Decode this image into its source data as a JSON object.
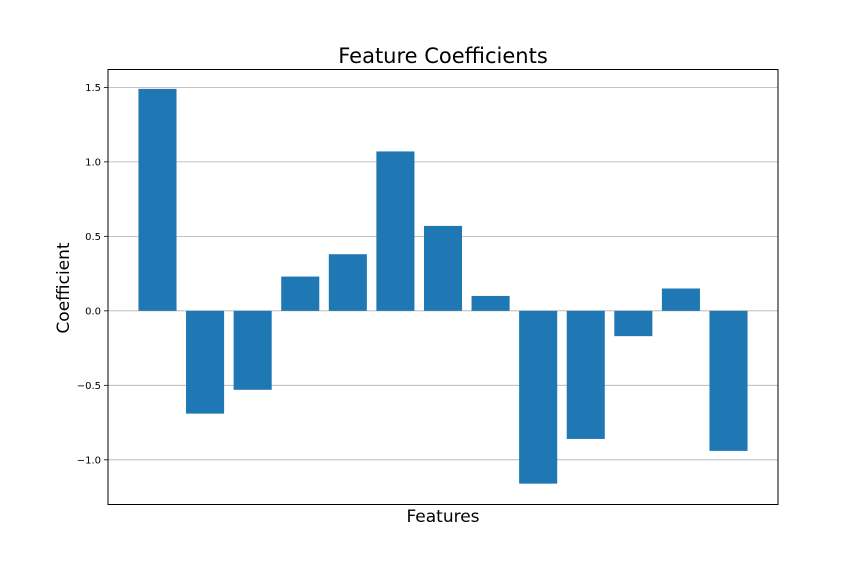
{
  "chart_data": {
    "type": "bar",
    "title": "Feature Coefficients",
    "xlabel": "Features",
    "ylabel": "Coefficient",
    "values": [
      1.49,
      -0.69,
      -0.53,
      0.23,
      0.38,
      1.07,
      0.57,
      0.1,
      -1.16,
      -0.86,
      -0.17,
      0.15,
      -0.94
    ],
    "ylim": [
      -1.3,
      1.62
    ],
    "yticks": [
      -1.0,
      -0.5,
      0.0,
      0.5,
      1.0,
      1.5
    ],
    "ytick_labels": [
      "−1.0",
      "−0.5",
      "0.0",
      "0.5",
      "1.0",
      "1.5"
    ],
    "grid": "horizontal",
    "bar_color": "#1f77b4"
  }
}
